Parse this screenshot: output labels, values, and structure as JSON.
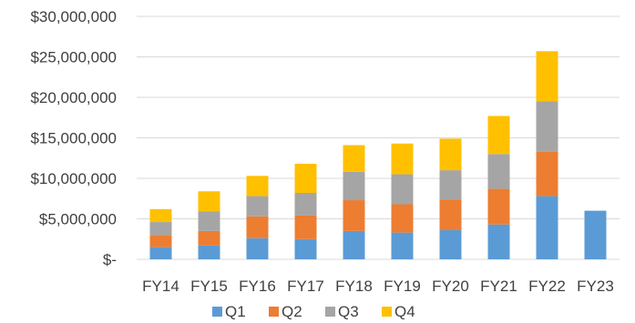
{
  "chart_data": {
    "type": "bar",
    "stacked": true,
    "categories": [
      "FY14",
      "FY15",
      "FY16",
      "FY17",
      "FY18",
      "FY19",
      "FY20",
      "FY21",
      "FY22",
      "FY23"
    ],
    "series": [
      {
        "name": "Q1",
        "color": "#5B9BD5",
        "values": [
          1500000,
          1700000,
          2600000,
          2500000,
          3500000,
          3300000,
          3600000,
          4300000,
          7800000,
          6000000
        ]
      },
      {
        "name": "Q2",
        "color": "#ED7D31",
        "values": [
          1500000,
          1800000,
          2700000,
          2900000,
          3800000,
          3500000,
          3800000,
          4400000,
          5500000,
          0
        ]
      },
      {
        "name": "Q3",
        "color": "#A5A5A5",
        "values": [
          1600000,
          2400000,
          2500000,
          2800000,
          3500000,
          3700000,
          3600000,
          4300000,
          6200000,
          0
        ]
      },
      {
        "name": "Q4",
        "color": "#FFC000",
        "values": [
          1600000,
          2500000,
          2500000,
          3600000,
          3300000,
          3800000,
          3900000,
          4700000,
          6200000,
          0
        ]
      }
    ],
    "ylim": [
      0,
      30000000
    ],
    "yticks": [
      0,
      5000000,
      10000000,
      15000000,
      20000000,
      25000000,
      30000000
    ],
    "ytick_labels": [
      "$-",
      "$5,000,000",
      "$10,000,000",
      "$15,000,000",
      "$20,000,000",
      "$25,000,000",
      "$30,000,000"
    ],
    "grid": true,
    "legend": "bottom",
    "title": "",
    "xlabel": "",
    "ylabel": ""
  }
}
